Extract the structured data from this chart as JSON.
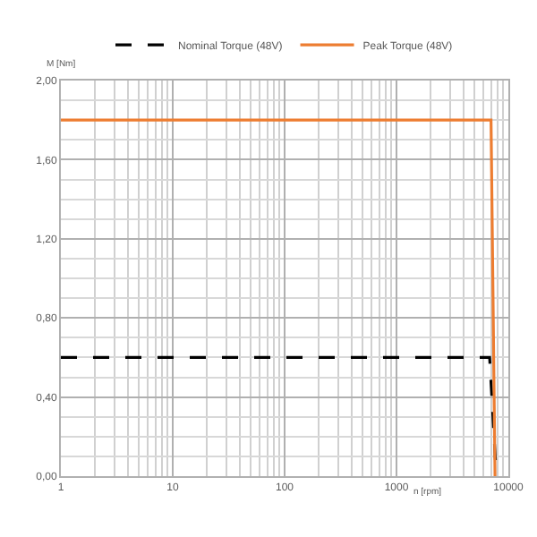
{
  "chart_data": {
    "type": "line",
    "xlabel": "n [rpm]",
    "ylabel": "M [Nm]",
    "log": "x",
    "grid": true,
    "legend": "top",
    "xlim": [
      1,
      10000
    ],
    "xticks": [
      1,
      10,
      100,
      1000,
      10000
    ],
    "ylim": [
      0,
      2
    ],
    "yticks": [
      {
        "value": 0,
        "label": "0,00"
      },
      {
        "value": 0.4,
        "label": "0,40"
      },
      {
        "value": 0.8,
        "label": "0,80"
      },
      {
        "value": 1.2,
        "label": "1,20"
      },
      {
        "value": 1.6,
        "label": "1,60"
      },
      {
        "value": 2,
        "label": "2,00"
      }
    ],
    "series": [
      {
        "name": "Nominal Torque (48V)",
        "color": "#000000",
        "line_style": "dashed",
        "x": [
          1,
          6800,
          7800
        ],
        "values": [
          0.6,
          0.6,
          0
        ]
      },
      {
        "name": "Peak Torque (48V)",
        "color": "#ed7d31",
        "line_style": "solid",
        "x": [
          1,
          7000,
          7600
        ],
        "values": [
          1.8,
          1.8,
          0
        ]
      }
    ]
  }
}
